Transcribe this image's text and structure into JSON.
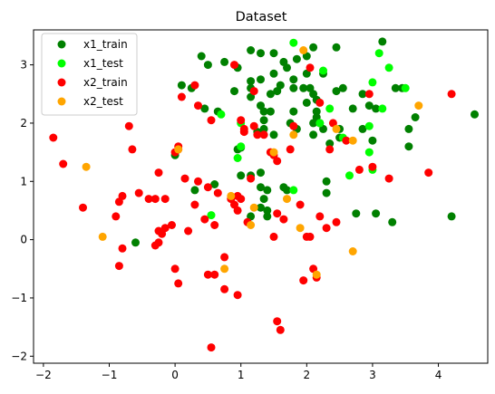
{
  "chart_data": {
    "type": "scatter",
    "title": "Dataset",
    "xlabel": "",
    "ylabel": "",
    "xlim": [
      -2.15,
      4.75
    ],
    "ylim": [
      -2.12,
      3.6
    ],
    "xticks": [
      -2,
      -1,
      0,
      1,
      2,
      3,
      4
    ],
    "yticks": [
      -2,
      -1,
      0,
      1,
      2,
      3
    ],
    "grid": false,
    "legend_position": "top-left",
    "series": [
      {
        "name": "x1_train",
        "color": "#008000",
        "points": [
          [
            0.4,
            3.15
          ],
          [
            0.5,
            3.0
          ],
          [
            0.75,
            3.05
          ],
          [
            0.95,
            2.95
          ],
          [
            1.15,
            3.25
          ],
          [
            1.3,
            3.2
          ],
          [
            1.5,
            3.2
          ],
          [
            1.65,
            3.05
          ],
          [
            1.7,
            2.95
          ],
          [
            1.85,
            3.1
          ],
          [
            2.0,
            3.15
          ],
          [
            2.1,
            3.3
          ],
          [
            2.45,
            3.3
          ],
          [
            3.15,
            3.4
          ],
          [
            2.25,
            2.85
          ],
          [
            1.5,
            2.85
          ],
          [
            1.6,
            2.65
          ],
          [
            0.1,
            2.65
          ],
          [
            0.25,
            2.6
          ],
          [
            0.45,
            2.25
          ],
          [
            0.65,
            2.2
          ],
          [
            0.9,
            2.55
          ],
          [
            1.15,
            2.6
          ],
          [
            1.15,
            2.72
          ],
          [
            1.15,
            2.45
          ],
          [
            1.3,
            2.75
          ],
          [
            1.3,
            2.3
          ],
          [
            1.45,
            2.5
          ],
          [
            1.55,
            2.55
          ],
          [
            1.8,
            2.6
          ],
          [
            1.8,
            2.75
          ],
          [
            1.95,
            2.6
          ],
          [
            2.0,
            2.85
          ],
          [
            2.05,
            2.6
          ],
          [
            2.1,
            2.5
          ],
          [
            2.15,
            2.4
          ],
          [
            2.15,
            2.2
          ],
          [
            2.45,
            2.55
          ],
          [
            2.55,
            2.6
          ],
          [
            2.85,
            2.5
          ],
          [
            2.95,
            2.3
          ],
          [
            3.05,
            2.25
          ],
          [
            3.35,
            2.6
          ],
          [
            3.45,
            2.6
          ],
          [
            1.35,
            2.2
          ],
          [
            1.35,
            2.05
          ],
          [
            1.35,
            1.9
          ],
          [
            1.45,
            2.2
          ],
          [
            1.25,
            1.85
          ],
          [
            1.5,
            1.8
          ],
          [
            1.75,
            2.0
          ],
          [
            1.8,
            2.2
          ],
          [
            1.85,
            1.9
          ],
          [
            2.0,
            2.35
          ],
          [
            2.1,
            2.0
          ],
          [
            2.15,
            2.1
          ],
          [
            2.1,
            1.8
          ],
          [
            2.2,
            2.0
          ],
          [
            2.25,
            1.9
          ],
          [
            2.35,
            1.65
          ],
          [
            2.5,
            1.75
          ],
          [
            2.5,
            1.9
          ],
          [
            2.7,
            2.25
          ],
          [
            2.85,
            1.9
          ],
          [
            3.0,
            1.7
          ],
          [
            3.55,
            1.9
          ],
          [
            3.55,
            1.6
          ],
          [
            3.65,
            2.1
          ],
          [
            4.55,
            2.15
          ],
          [
            0.0,
            1.45
          ],
          [
            0.95,
            1.55
          ],
          [
            1.0,
            1.58
          ],
          [
            1.0,
            1.1
          ],
          [
            1.15,
            1.1
          ],
          [
            1.3,
            1.15
          ],
          [
            1.3,
            0.9
          ],
          [
            1.4,
            0.85
          ],
          [
            1.35,
            0.7
          ],
          [
            1.4,
            0.5
          ],
          [
            1.4,
            0.4
          ],
          [
            1.3,
            0.55
          ],
          [
            1.15,
            0.4
          ],
          [
            1.7,
            0.85
          ],
          [
            1.65,
            0.9
          ],
          [
            0.3,
            0.85
          ],
          [
            0.6,
            0.95
          ],
          [
            2.3,
            1.0
          ],
          [
            2.3,
            0.8
          ],
          [
            3.05,
            0.45
          ],
          [
            2.75,
            0.45
          ],
          [
            3.3,
            0.3
          ],
          [
            4.2,
            0.4
          ],
          [
            -0.6,
            -0.05
          ]
        ]
      },
      {
        "name": "x1_test",
        "color": "#00ff00",
        "points": [
          [
            1.8,
            3.38
          ],
          [
            3.1,
            3.2
          ],
          [
            2.25,
            2.9
          ],
          [
            3.25,
            2.95
          ],
          [
            0.7,
            2.15
          ],
          [
            1.0,
            2.0
          ],
          [
            2.35,
            2.25
          ],
          [
            3.0,
            2.7
          ],
          [
            3.15,
            2.25
          ],
          [
            3.5,
            2.6
          ],
          [
            2.2,
            2.0
          ],
          [
            2.55,
            1.75
          ],
          [
            2.95,
            1.95
          ],
          [
            0.95,
            1.4
          ],
          [
            1.0,
            1.6
          ],
          [
            2.65,
            1.1
          ],
          [
            2.95,
            1.5
          ],
          [
            3.0,
            1.2
          ],
          [
            1.8,
            0.85
          ],
          [
            0.55,
            0.42
          ]
        ]
      },
      {
        "name": "x2_train",
        "color": "#ff0000",
        "points": [
          [
            -1.85,
            1.75
          ],
          [
            -1.7,
            1.3
          ],
          [
            -1.4,
            0.55
          ],
          [
            -0.9,
            0.4
          ],
          [
            -0.85,
            0.65
          ],
          [
            -0.8,
            0.75
          ],
          [
            -0.8,
            -0.15
          ],
          [
            -0.85,
            -0.45
          ],
          [
            -0.7,
            1.95
          ],
          [
            -0.65,
            1.55
          ],
          [
            -0.55,
            0.8
          ],
          [
            -0.4,
            0.7
          ],
          [
            -0.3,
            0.7
          ],
          [
            -0.3,
            -0.1
          ],
          [
            -0.25,
            -0.05
          ],
          [
            -0.2,
            0.1
          ],
          [
            -0.25,
            0.15
          ],
          [
            -0.15,
            0.2
          ],
          [
            -0.05,
            0.25
          ],
          [
            0.0,
            -0.5
          ],
          [
            0.05,
            -0.75
          ],
          [
            0.05,
            1.55
          ],
          [
            0.05,
            1.6
          ],
          [
            -0.25,
            1.15
          ],
          [
            -0.15,
            0.7
          ],
          [
            0.15,
            1.05
          ],
          [
            0.2,
            0.15
          ],
          [
            0.3,
            0.6
          ],
          [
            0.35,
            1.0
          ],
          [
            0.45,
            0.35
          ],
          [
            0.5,
            0.9
          ],
          [
            0.5,
            -0.6
          ],
          [
            0.55,
            -1.85
          ],
          [
            0.6,
            -0.6
          ],
          [
            0.6,
            0.25
          ],
          [
            0.65,
            0.8
          ],
          [
            0.75,
            -0.3
          ],
          [
            0.75,
            -0.85
          ],
          [
            0.85,
            0.7
          ],
          [
            0.9,
            0.6
          ],
          [
            0.95,
            0.75
          ],
          [
            0.95,
            -0.95
          ],
          [
            0.95,
            0.5
          ],
          [
            1.0,
            0.7
          ],
          [
            1.05,
            1.85
          ],
          [
            1.1,
            0.3
          ],
          [
            1.15,
            1.05
          ],
          [
            1.2,
            1.95
          ],
          [
            1.25,
            1.8
          ],
          [
            1.35,
            1.8
          ],
          [
            1.45,
            1.5
          ],
          [
            1.5,
            1.45
          ],
          [
            1.55,
            1.35
          ],
          [
            1.5,
            0.05
          ],
          [
            1.55,
            0.45
          ],
          [
            1.55,
            -1.4
          ],
          [
            1.6,
            -1.55
          ],
          [
            1.65,
            0.35
          ],
          [
            1.75,
            1.55
          ],
          [
            1.8,
            1.95
          ],
          [
            1.9,
            0.6
          ],
          [
            1.95,
            -0.7
          ],
          [
            2.0,
            0.05
          ],
          [
            2.05,
            0.05
          ],
          [
            2.1,
            -0.5
          ],
          [
            2.15,
            -0.65
          ],
          [
            2.2,
            0.4
          ],
          [
            2.3,
            0.2
          ],
          [
            2.45,
            0.3
          ],
          [
            2.35,
            1.55
          ],
          [
            2.4,
            2.0
          ],
          [
            2.6,
            1.7
          ],
          [
            2.8,
            1.2
          ],
          [
            2.95,
            2.5
          ],
          [
            3.0,
            1.25
          ],
          [
            3.25,
            1.05
          ],
          [
            3.85,
            1.15
          ],
          [
            4.2,
            2.5
          ],
          [
            2.05,
            2.95
          ],
          [
            0.0,
            1.5
          ],
          [
            0.1,
            2.45
          ],
          [
            0.3,
            2.65
          ],
          [
            0.35,
            2.3
          ],
          [
            0.55,
            2.05
          ],
          [
            0.9,
            3.0
          ],
          [
            1.0,
            2.05
          ],
          [
            1.05,
            1.9
          ],
          [
            1.2,
            2.55
          ],
          [
            2.2,
            2.35
          ]
        ]
      },
      {
        "name": "x2_test",
        "color": "#ffa500",
        "points": [
          [
            -1.35,
            1.25
          ],
          [
            -1.1,
            0.05
          ],
          [
            0.05,
            1.55
          ],
          [
            0.85,
            0.75
          ],
          [
            1.2,
            0.55
          ],
          [
            1.15,
            0.25
          ],
          [
            0.75,
            -0.5
          ],
          [
            1.7,
            0.7
          ],
          [
            1.9,
            0.2
          ],
          [
            2.15,
            -0.6
          ],
          [
            2.7,
            -0.2
          ],
          [
            1.8,
            1.8
          ],
          [
            1.5,
            1.5
          ],
          [
            2.7,
            1.7
          ],
          [
            2.45,
            1.9
          ],
          [
            3.7,
            2.3
          ],
          [
            1.95,
            3.25
          ]
        ]
      }
    ]
  }
}
